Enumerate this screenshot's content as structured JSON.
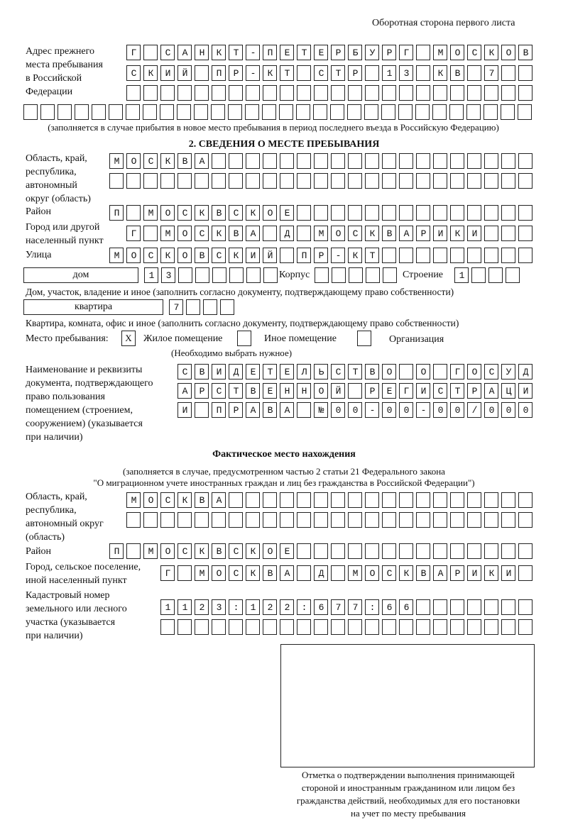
{
  "header": "Оборотная сторона первого листа",
  "prev_address": {
    "label": [
      "Адрес прежнего",
      "места пребывания",
      "в Российской",
      "Федерации"
    ],
    "rows": [
      "Г САНКТ-ПЕТЕРБУРГ МОСКОВ",
      "СКИЙ ПР-КТ СТР 13 КВ 7  ",
      "                        ",
      "                              "
    ],
    "note": "(заполняется в случае прибытия в новое место пребывания в период последнего въезда в Российскую Федерацию)"
  },
  "section2": {
    "title": "2. СВЕДЕНИЯ О МЕСТЕ ПРЕБЫВАНИЯ",
    "region_label": [
      "Область, край,",
      "республика,",
      "автономный",
      "округ (область)"
    ],
    "region_rows": [
      "МОСКВА                   ",
      "                         "
    ],
    "district_label": "Район",
    "district": "П МОСКВСКОЕ              ",
    "city_label": [
      "Город или другой",
      "населенный пункт"
    ],
    "city": "Г МОСКВА Д МОСКВАРИКИ   ",
    "street_label": "Улица",
    "street": "МОСКОВСКИЙ ПР-КТ         ",
    "house_type": "дом",
    "house": "13      ",
    "korpus_label": "Корпус",
    "korpus": "     ",
    "stroenie_label": "Строение",
    "stroenie": "1   ",
    "house_note": "Дом, участок, владение и иное (заполнить согласно документу, подтверждающему право собственности)",
    "flat_type": "квартира",
    "flat": "7   ",
    "flat_note": "Квартира, комната, офис и иное (заполнить согласно документу, подтверждающему право собственности)",
    "stay_label": "Место пребывания:",
    "options": [
      {
        "mark": "X",
        "label": "Жилое помещение"
      },
      {
        "mark": "",
        "label": "Иное помещение"
      },
      {
        "mark": "",
        "label": "Организация"
      }
    ],
    "options_note": "(Необходимо выбрать нужное)",
    "doc_label": [
      "Наименование и реквизиты",
      "документа, подтверждающего",
      "право пользования",
      "помещением (строением,",
      "сооружением) (указывается",
      "при наличии)"
    ],
    "doc_rows": [
      "СВИДЕТЕЛЬСТВО О ГОСУД",
      "АРСТВЕННОЙ РЕГИСТРАЦИ",
      "И ПРАВА №00-00-00/000"
    ]
  },
  "actual": {
    "title": "Фактическое место нахождения",
    "note": [
      "(заполняется в случае, предусмотренном частью 2 статьи 21 Федерального закона",
      "\"О миграционном учете иностранных граждан и лиц без гражданства в Российской Федерации\")"
    ],
    "region_label": [
      "Область, край,",
      "республика,",
      "автономный округ",
      "(область)"
    ],
    "region_rows": [
      "МОСКВА                  ",
      "                        "
    ],
    "district_label": "Район",
    "district": "П МОСКВСКОЕ              ",
    "city_label": [
      "Город, сельское поселение,",
      "иной населенный пункт"
    ],
    "city": "Г МОСКВА Д МОСКВАРИКИ ",
    "cadastre_label": [
      "Кадастровый номер",
      "земельного или лесного",
      "участка (указывается",
      "при наличии)"
    ],
    "cadastre_rows": [
      "1123:122:677:66       ",
      "                      "
    ]
  },
  "stamp_caption": [
    "Отметка о подтверждении выполнения принимающей",
    "стороной и иностранным гражданином или лицом без",
    "гражданства действий, необходимых для его постановки",
    "на учет по месту пребывания"
  ]
}
